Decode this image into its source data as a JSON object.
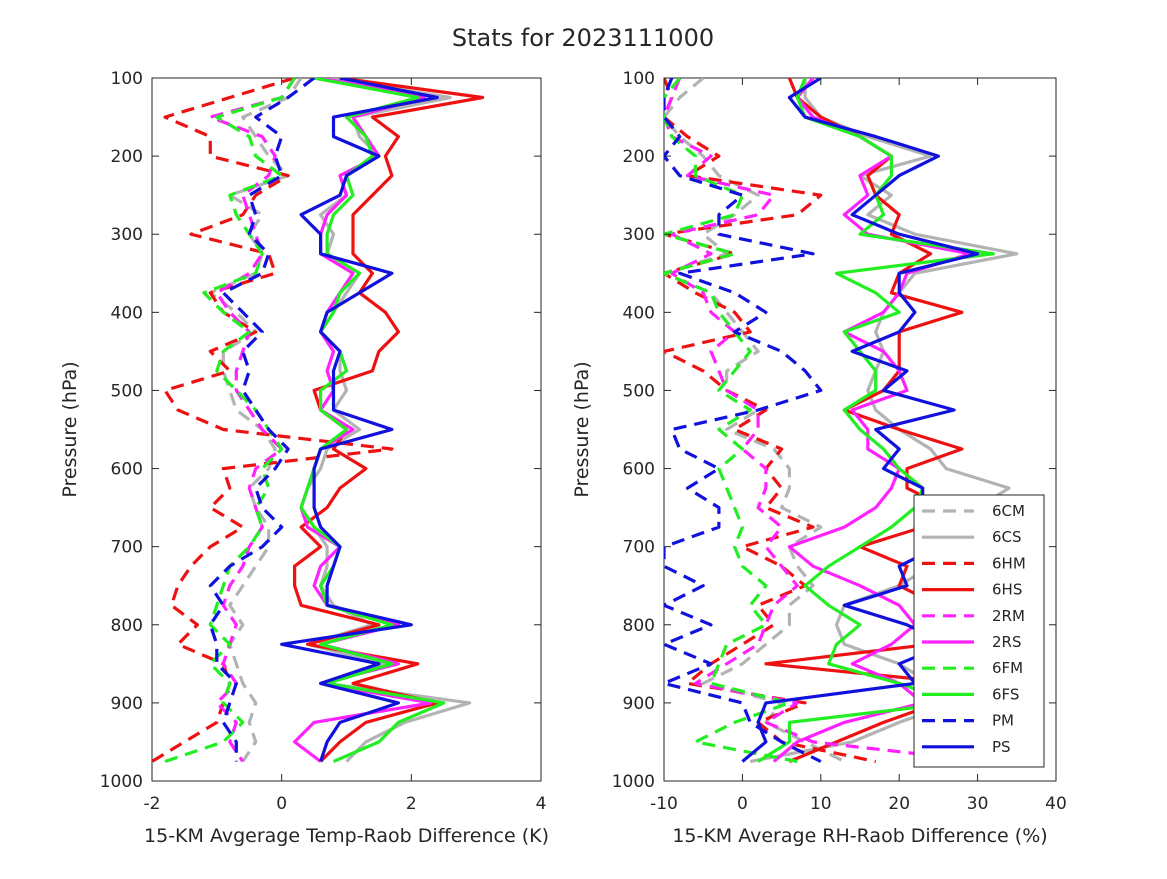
{
  "figure": {
    "title": "Stats for 2023111000"
  },
  "chart_data": [
    {
      "type": "line",
      "title": "",
      "xlabel": "15-KM Avgerage Temp-Raob Difference (K)",
      "ylabel": "Pressure (hPa)",
      "xlim": [
        -2,
        4
      ],
      "ylim": [
        100,
        1000
      ],
      "y_reversed": true,
      "xticks": [
        -2,
        0,
        2,
        4
      ],
      "yticks": [
        100,
        200,
        300,
        400,
        500,
        600,
        700,
        800,
        900,
        1000
      ],
      "levels": [
        100,
        125,
        150,
        175,
        200,
        225,
        250,
        275,
        300,
        325,
        350,
        375,
        400,
        425,
        450,
        475,
        500,
        525,
        550,
        575,
        600,
        625,
        650,
        675,
        700,
        725,
        750,
        775,
        800,
        825,
        850,
        875,
        900,
        925,
        950,
        975
      ],
      "series": [
        {
          "name": "6CM",
          "values": [
            0.3,
            0.1,
            -0.6,
            -0.4,
            -0.2,
            0.1,
            -0.8,
            -0.3,
            -0.5,
            -0.3,
            -0.4,
            -1.1,
            -0.7,
            -0.4,
            -0.9,
            -0.9,
            -0.8,
            -0.7,
            -0.3,
            -0.1,
            -0.2,
            -0.5,
            -0.4,
            -0.2,
            -0.2,
            -0.4,
            -0.6,
            -0.8,
            -0.6,
            -0.8,
            -0.7,
            -0.6,
            -0.4,
            -0.5,
            -0.4,
            -0.6
          ]
        },
        {
          "name": "6CS",
          "values": [
            0.7,
            2.6,
            1.1,
            1.2,
            1.5,
            0.9,
            1.0,
            0.6,
            0.8,
            0.7,
            1.2,
            1.0,
            0.8,
            0.6,
            0.9,
            0.9,
            1.0,
            0.8,
            1.2,
            0.7,
            0.6,
            0.4,
            0.3,
            0.5,
            0.7,
            0.7,
            0.6,
            0.8,
            1.4,
            0.4,
            1.6,
            0.7,
            2.9,
            1.9,
            1.3,
            1.0
          ]
        },
        {
          "name": "6HM",
          "values": [
            0.2,
            -0.8,
            -1.8,
            -1.1,
            -1.1,
            0.1,
            -0.4,
            -0.6,
            -1.4,
            -0.2,
            -0.1,
            -1.1,
            -0.9,
            -0.4,
            -1.1,
            -0.8,
            -1.8,
            -1.6,
            -0.9,
            1.7,
            -0.9,
            -0.8,
            -1.1,
            -0.6,
            -1.1,
            -1.4,
            -1.6,
            -1.7,
            -1.3,
            -1.6,
            -0.9,
            -0.8,
            -0.9,
            -1.0,
            -1.5,
            -2.0
          ]
        },
        {
          "name": "6HS",
          "values": [
            0.9,
            3.1,
            1.4,
            1.8,
            1.6,
            1.7,
            1.4,
            1.1,
            1.1,
            1.1,
            1.4,
            1.2,
            1.6,
            1.8,
            1.5,
            1.4,
            0.5,
            0.6,
            1.0,
            0.8,
            1.3,
            0.9,
            0.7,
            0.3,
            0.6,
            0.2,
            0.2,
            0.3,
            1.5,
            0.4,
            2.1,
            1.1,
            2.4,
            1.3,
            0.9,
            0.6
          ]
        },
        {
          "name": "2RM",
          "values": [
            0.2,
            0.0,
            -1.1,
            -0.3,
            -0.1,
            -0.2,
            -0.6,
            -0.5,
            -0.4,
            -0.3,
            -0.5,
            -1.0,
            -0.8,
            -0.5,
            -0.6,
            -0.7,
            -0.7,
            -0.5,
            -0.3,
            0.0,
            -0.4,
            -0.5,
            -0.4,
            -0.3,
            -0.5,
            -0.6,
            -0.8,
            -0.9,
            -0.7,
            -0.8,
            -0.9,
            -0.7,
            -1.0,
            -0.7,
            -0.8,
            -0.6
          ]
        },
        {
          "name": "2RS",
          "values": [
            0.6,
            2.2,
            1.1,
            1.3,
            1.5,
            0.9,
            1.0,
            0.7,
            0.6,
            0.6,
            1.1,
            0.9,
            0.7,
            0.6,
            0.8,
            0.7,
            0.8,
            0.6,
            1.1,
            0.6,
            0.5,
            0.4,
            0.3,
            0.4,
            0.9,
            0.6,
            0.5,
            0.7,
            1.8,
            0.6,
            1.8,
            0.6,
            2.3,
            0.5,
            0.2,
            0.6
          ]
        },
        {
          "name": "6FM",
          "values": [
            0.2,
            0.0,
            -1.0,
            -0.5,
            -0.4,
            0.0,
            -0.8,
            -0.7,
            -0.5,
            -0.3,
            -0.4,
            -1.2,
            -0.9,
            -0.5,
            -0.9,
            -1.0,
            -0.7,
            -0.4,
            -0.2,
            0.0,
            -0.3,
            -0.2,
            -0.4,
            -0.3,
            -0.5,
            -0.8,
            -0.9,
            -1.0,
            -1.1,
            -0.8,
            -1.1,
            -0.8,
            -0.9,
            -0.6,
            -0.9,
            -1.8
          ]
        },
        {
          "name": "6FS",
          "values": [
            0.5,
            2.1,
            1.0,
            1.3,
            1.4,
            1.0,
            1.1,
            0.8,
            0.7,
            0.7,
            1.2,
            0.9,
            0.8,
            0.6,
            0.9,
            1.0,
            0.6,
            0.6,
            1.0,
            0.6,
            0.5,
            0.4,
            0.3,
            0.5,
            0.9,
            0.8,
            0.6,
            0.7,
            1.7,
            0.6,
            1.7,
            0.7,
            2.5,
            1.8,
            1.5,
            0.8
          ]
        },
        {
          "name": "PM",
          "values": [
            0.5,
            0.1,
            -0.4,
            0.0,
            -0.1,
            0.0,
            -0.5,
            -0.4,
            -0.5,
            -0.2,
            -0.3,
            -0.9,
            -0.6,
            -0.3,
            -0.6,
            -0.5,
            -0.6,
            -0.4,
            -0.2,
            0.1,
            -0.1,
            -0.4,
            -0.3,
            0.0,
            -0.3,
            -0.8,
            -1.1,
            -0.9,
            -1.1,
            -1.0,
            -1.0,
            -0.7,
            -0.8,
            -0.9,
            -0.7,
            -0.7
          ]
        },
        {
          "name": "PS",
          "values": [
            0.9,
            2.4,
            0.8,
            0.8,
            1.5,
            1.0,
            0.9,
            0.3,
            0.6,
            0.6,
            1.7,
            1.2,
            0.7,
            0.6,
            0.9,
            0.8,
            0.8,
            0.8,
            1.7,
            0.6,
            0.5,
            0.5,
            0.5,
            0.6,
            0.9,
            0.8,
            0.7,
            0.7,
            2.0,
            0.0,
            1.5,
            0.6,
            1.8,
            0.9,
            0.7,
            0.6
          ]
        }
      ]
    },
    {
      "type": "line",
      "title": "",
      "xlabel": "15-KM Average RH-Raob Difference (%)",
      "ylabel": "Pressure (hPa)",
      "xlim": [
        -10,
        40
      ],
      "ylim": [
        100,
        1000
      ],
      "y_reversed": true,
      "xticks": [
        -10,
        0,
        10,
        20,
        30,
        40
      ],
      "yticks": [
        100,
        200,
        300,
        400,
        500,
        600,
        700,
        800,
        900,
        1000
      ],
      "legend_position": "bottom-right",
      "levels": [
        100,
        125,
        150,
        175,
        200,
        225,
        250,
        275,
        300,
        325,
        350,
        375,
        400,
        425,
        450,
        475,
        500,
        525,
        550,
        575,
        600,
        625,
        650,
        675,
        700,
        725,
        750,
        775,
        800,
        825,
        850,
        875,
        900,
        925,
        950,
        975
      ],
      "series": [
        {
          "name": "6CM",
          "values": [
            -5,
            -8,
            -10,
            -8,
            -5,
            -3,
            2,
            -1,
            -5,
            -2,
            -10,
            -4,
            -2,
            0,
            2,
            -2,
            -2,
            2,
            -2,
            4,
            6,
            6,
            5,
            10,
            6,
            7,
            9,
            6,
            6,
            3,
            0,
            -5,
            5,
            3,
            8,
            13
          ]
        },
        {
          "name": "6CS",
          "values": [
            8,
            8,
            10,
            16,
            24,
            15,
            19,
            16,
            22,
            35,
            22,
            20,
            18,
            17,
            18,
            17,
            16,
            17,
            20,
            24,
            26,
            34,
            30,
            28,
            26,
            24,
            20,
            13,
            12,
            13,
            20,
            24,
            27,
            20,
            14,
            1
          ]
        },
        {
          "name": "6HM",
          "values": [
            -10,
            -9,
            -10,
            -7,
            -3,
            -7,
            10,
            7,
            -10,
            -1,
            -10,
            -6,
            -1,
            1,
            -10,
            -5,
            -2,
            3,
            -1,
            5,
            3,
            5,
            3,
            9,
            0,
            5,
            8,
            2,
            4,
            0,
            -4,
            -7,
            8,
            2,
            5,
            17
          ]
        },
        {
          "name": "6HS",
          "values": [
            6,
            7,
            10,
            15,
            19,
            16,
            17,
            20,
            19,
            24,
            20,
            19,
            28,
            20,
            20,
            20,
            18,
            13,
            20,
            28,
            21,
            21,
            26,
            23,
            15,
            21,
            20,
            25,
            25,
            24,
            3,
            28,
            25,
            18,
            12,
            6
          ]
        },
        {
          "name": "2RM",
          "values": [
            -8,
            -9,
            -10,
            -9,
            -4,
            -7,
            4,
            2,
            -9,
            -4,
            -9,
            -5,
            -4,
            -1,
            -4,
            -3,
            -2,
            2,
            2,
            0,
            3,
            3,
            2,
            5,
            3,
            5,
            7,
            4,
            3,
            2,
            -2,
            -6,
            7,
            3,
            9,
            31
          ]
        },
        {
          "name": "2RS",
          "values": [
            9,
            7,
            9,
            15,
            19,
            15,
            16,
            13,
            16,
            29,
            21,
            20,
            18,
            13,
            18,
            20,
            21,
            14,
            16,
            16,
            20,
            19,
            17,
            13,
            6,
            9,
            15,
            20,
            22,
            19,
            14,
            20,
            23,
            13,
            7,
            4
          ]
        },
        {
          "name": "6FM",
          "values": [
            -8,
            -10,
            -10,
            -9,
            -6,
            -6,
            0,
            -1,
            -10,
            -1,
            -10,
            -4,
            -3,
            -1,
            1,
            -1,
            -3,
            1,
            -3,
            0,
            -3,
            -2,
            -1,
            0,
            -1,
            0,
            3,
            1,
            3,
            -2,
            -3,
            -4,
            6,
            -1,
            -6,
            7
          ]
        },
        {
          "name": "6FS",
          "values": [
            8,
            7,
            8,
            15,
            19,
            19,
            17,
            18,
            15,
            32,
            12,
            17,
            20,
            13,
            15,
            17,
            17,
            13,
            15,
            18,
            20,
            23,
            22,
            19,
            15,
            11,
            8,
            11,
            15,
            12,
            11,
            20,
            27,
            6,
            6,
            2
          ]
        },
        {
          "name": "PM",
          "values": [
            -9,
            -10,
            -10,
            -8,
            -10,
            -8,
            0,
            -3,
            -3,
            9,
            -8,
            -1,
            3,
            -1,
            5,
            8,
            10,
            2,
            -9,
            -8,
            -3,
            -7,
            -3,
            -3,
            -10,
            -10,
            -5,
            -10,
            -4,
            -10,
            -4,
            -10,
            0,
            1,
            5,
            10
          ]
        },
        {
          "name": "PS",
          "values": [
            10,
            6,
            8,
            17,
            25,
            20,
            17,
            14,
            20,
            30,
            20,
            20,
            22,
            20,
            14,
            21,
            18,
            27,
            17,
            20,
            18,
            23,
            23,
            22,
            25,
            20,
            21,
            13,
            21,
            26,
            20,
            22,
            3,
            2,
            3,
            0
          ]
        }
      ]
    }
  ],
  "legend": {
    "entries": [
      {
        "name": "6CM",
        "color": "#b3b3b3",
        "dashed": true
      },
      {
        "name": "6CS",
        "color": "#b3b3b3",
        "dashed": false
      },
      {
        "name": "6HM",
        "color": "#ee1111",
        "dashed": true
      },
      {
        "name": "6HS",
        "color": "#ee1111",
        "dashed": false
      },
      {
        "name": "2RM",
        "color": "#ff22ff",
        "dashed": true
      },
      {
        "name": "2RS",
        "color": "#ff22ff",
        "dashed": false
      },
      {
        "name": "6FM",
        "color": "#22ee22",
        "dashed": true
      },
      {
        "name": "6FS",
        "color": "#22ee22",
        "dashed": false
      },
      {
        "name": "PM",
        "color": "#1111dd",
        "dashed": true
      },
      {
        "name": "PS",
        "color": "#1111dd",
        "dashed": false
      }
    ]
  }
}
